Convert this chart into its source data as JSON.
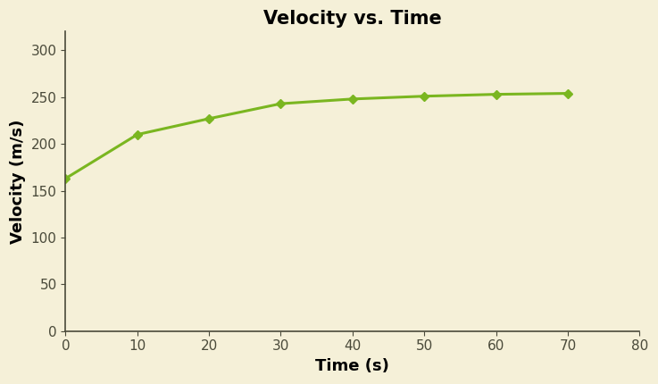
{
  "title": "Velocity vs. Time",
  "xlabel": "Time (s)",
  "ylabel": "Velocity (m/s)",
  "x": [
    0,
    10,
    20,
    30,
    40,
    50,
    60,
    70
  ],
  "y": [
    163,
    210,
    227,
    243,
    248,
    251,
    253,
    254
  ],
  "xlim": [
    0,
    80
  ],
  "ylim": [
    0,
    320
  ],
  "xticks": [
    0,
    10,
    20,
    30,
    40,
    50,
    60,
    70,
    80
  ],
  "yticks": [
    0,
    50,
    100,
    150,
    200,
    250,
    300
  ],
  "line_color": "#7ab620",
  "marker": "D",
  "marker_size": 5,
  "line_width": 2.2,
  "background_color": "#f5f0d8",
  "title_fontsize": 15,
  "label_fontsize": 13,
  "tick_fontsize": 11,
  "title_fontweight": "bold",
  "label_fontweight": "bold"
}
